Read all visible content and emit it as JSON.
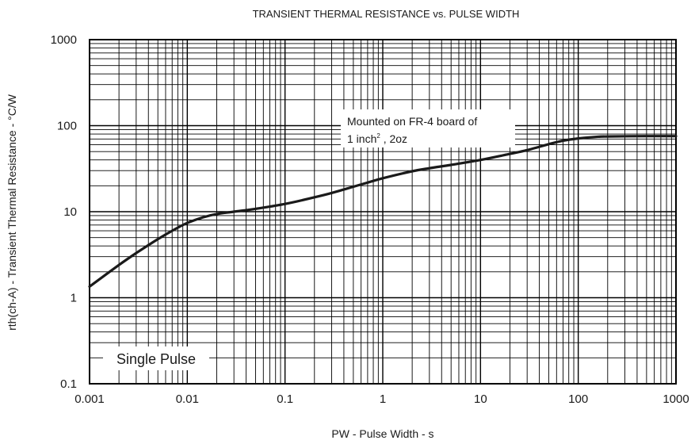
{
  "chart_data": {
    "type": "line",
    "title": "TRANSIENT THERMAL RESISTANCE vs. PULSE WIDTH",
    "xlabel": "PW - Pulse Width - s",
    "ylabel": "rth(ch-A) - Transient Thermal Resistance - °C/W",
    "x_scale": "log",
    "y_scale": "log",
    "xlim": [
      0.001,
      1000
    ],
    "ylim": [
      0.1,
      1000
    ],
    "x_ticks": [
      "0.001",
      "0.01",
      "0.1",
      "1",
      "10",
      "100",
      "1000"
    ],
    "y_ticks": [
      "0.1",
      "1",
      "10",
      "100",
      "1000"
    ],
    "grid": true,
    "series": [
      {
        "x": [
          0.001,
          0.002,
          0.003,
          0.005,
          0.007,
          0.01,
          0.015,
          0.02,
          0.03,
          0.05,
          0.1,
          0.2,
          0.3,
          0.5,
          0.7,
          1,
          2,
          3,
          5,
          10,
          20,
          30,
          50,
          70,
          100,
          150,
          200,
          500,
          1000
        ],
        "y": [
          1.35,
          2.4,
          3.3,
          4.8,
          6.0,
          7.4,
          8.7,
          9.4,
          10.0,
          10.8,
          12.3,
          14.7,
          16.5,
          19.5,
          21.8,
          24.5,
          29.5,
          32.0,
          35.0,
          40.0,
          47.0,
          52.0,
          61.0,
          67.0,
          71.0,
          74.0,
          75.0,
          75.5,
          75.5
        ]
      }
    ],
    "annotations": {
      "board_line1": "Mounted on FR-4 board of",
      "board_line2_main": "1 inch",
      "board_line2_sup": "2",
      "board_line2_rest": " , 2oz",
      "pulse": "Single Pulse"
    }
  }
}
